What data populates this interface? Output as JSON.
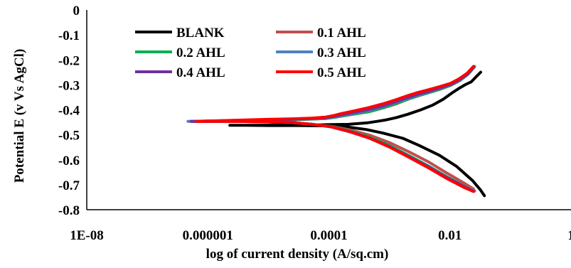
{
  "chart_data": {
    "type": "line",
    "title": "",
    "xlabel": "log of current density (A/sq.cm)",
    "ylabel": "Potential E (v Vs AgCl)",
    "xscale": "log",
    "xlim": [
      1e-08,
      1
    ],
    "ylim": [
      -0.8,
      0
    ],
    "x_tick_labels": [
      "1E-08",
      "0.000001",
      "0.0001",
      "0.01",
      "1"
    ],
    "y_tick_labels": [
      "0",
      "-0.1",
      "-0.2",
      "-0.3",
      "-0.4",
      "-0.5",
      "-0.6",
      "-0.7",
      "-0.8"
    ],
    "grid": false,
    "legend_position": "top-left",
    "series": [
      {
        "name": "BLANK",
        "color": "#000000",
        "x": [
          0.0322,
          0.0275,
          0.0224,
          0.018,
          0.0141,
          0.0107,
          0.0077,
          0.0052,
          0.0033,
          0.002,
          0.0013,
          0.00085,
          0.00063,
          0.00043,
          0.00021,
          0.000105,
          5.25e-05,
          1.27e-05,
          5.93e-06,
          2.31e-06,
          2.31e-06,
          2.31e-06,
          4.31e-06,
          1.01e-05,
          3.11e-05,
          8.8e-05,
          0.00019,
          0.000415,
          0.000782,
          0.00166,
          0.00311,
          0.0067,
          0.0128,
          0.0238,
          0.0322,
          0.0371
        ],
        "y": [
          -0.249,
          -0.266,
          -0.288,
          -0.299,
          -0.314,
          -0.333,
          -0.358,
          -0.381,
          -0.4,
          -0.418,
          -0.431,
          -0.441,
          -0.446,
          -0.452,
          -0.458,
          -0.459,
          -0.461,
          -0.461,
          -0.462,
          -0.462,
          -0.462,
          -0.462,
          -0.462,
          -0.463,
          -0.463,
          -0.464,
          -0.468,
          -0.479,
          -0.493,
          -0.514,
          -0.543,
          -0.582,
          -0.626,
          -0.684,
          -0.722,
          -0.744
        ]
      },
      {
        "name": "0.1 AHL",
        "color": "#C0504D",
        "x": [
          0.0245,
          0.0191,
          0.0141,
          0.0102,
          0.0068,
          0.0045,
          0.003,
          0.002,
          0.0013,
          0.00078,
          0.00046,
          0.00025,
          0.000155,
          0.000125,
          8.81e-05,
          5.25e-05,
          2.54e-05,
          1.05e-05,
          2.5e-06,
          5.3e-07,
          5.3e-07,
          5.3e-07,
          8.7e-07,
          2.5e-06,
          8.9e-06,
          2.46e-05,
          5.25e-05,
          0.00011,
          0.00022,
          0.000467,
          0.00098,
          0.0021,
          0.0044,
          0.0089,
          0.0168,
          0.0245
        ],
        "y": [
          -0.232,
          -0.26,
          -0.284,
          -0.302,
          -0.318,
          -0.331,
          -0.344,
          -0.358,
          -0.376,
          -0.393,
          -0.408,
          -0.418,
          -0.426,
          -0.43,
          -0.435,
          -0.437,
          -0.44,
          -0.441,
          -0.444,
          -0.446,
          -0.446,
          -0.446,
          -0.446,
          -0.446,
          -0.448,
          -0.451,
          -0.458,
          -0.466,
          -0.48,
          -0.501,
          -0.53,
          -0.568,
          -0.608,
          -0.653,
          -0.692,
          -0.717
        ]
      },
      {
        "name": "0.2 AHL",
        "color": "#00B050",
        "x": [
          0.0256,
          0.0199,
          0.0148,
          0.0107,
          0.0071,
          0.0048,
          0.0031,
          0.0021,
          0.0013,
          0.00078,
          0.00046,
          0.00025,
          0.000155,
          0.000125,
          8.81e-05,
          5.25e-05,
          2.54e-05,
          1.05e-05,
          2.5e-06,
          5.3e-07,
          5.3e-07,
          5.3e-07,
          8.7e-07,
          2.5e-06,
          8.9e-06,
          2.46e-05,
          5.25e-05,
          0.00011,
          0.00022,
          0.000467,
          0.00098,
          0.0021,
          0.0044,
          0.0089,
          0.0168,
          0.0256
        ],
        "y": [
          -0.228,
          -0.258,
          -0.282,
          -0.3,
          -0.316,
          -0.329,
          -0.342,
          -0.356,
          -0.374,
          -0.392,
          -0.407,
          -0.417,
          -0.426,
          -0.43,
          -0.435,
          -0.437,
          -0.44,
          -0.441,
          -0.444,
          -0.446,
          -0.446,
          -0.446,
          -0.446,
          -0.446,
          -0.448,
          -0.451,
          -0.458,
          -0.467,
          -0.484,
          -0.509,
          -0.542,
          -0.583,
          -0.625,
          -0.668,
          -0.704,
          -0.725
        ]
      },
      {
        "name": "0.3 AHL",
        "color": "#4F81BD",
        "x": [
          0.0256,
          0.0199,
          0.0148,
          0.0107,
          0.0071,
          0.0048,
          0.0031,
          0.0021,
          0.0013,
          0.00078,
          0.00046,
          0.00025,
          0.000155,
          0.000125,
          8.81e-05,
          5.25e-05,
          2.54e-05,
          1.05e-05,
          2.5e-06,
          4.7e-07,
          4.7e-07,
          4.7e-07,
          8.7e-07,
          2.5e-06,
          8.9e-06,
          2.46e-05,
          5.25e-05,
          0.00011,
          0.00022,
          0.000467,
          0.00098,
          0.0021,
          0.0044,
          0.0089,
          0.0168,
          0.0256
        ],
        "y": [
          -0.226,
          -0.257,
          -0.28,
          -0.298,
          -0.313,
          -0.326,
          -0.339,
          -0.352,
          -0.369,
          -0.387,
          -0.402,
          -0.414,
          -0.423,
          -0.428,
          -0.433,
          -0.436,
          -0.438,
          -0.44,
          -0.443,
          -0.446,
          -0.446,
          -0.446,
          -0.446,
          -0.446,
          -0.448,
          -0.451,
          -0.458,
          -0.469,
          -0.488,
          -0.514,
          -0.547,
          -0.588,
          -0.629,
          -0.671,
          -0.705,
          -0.724
        ]
      },
      {
        "name": "0.4 AHL",
        "color": "#7030A0",
        "x": [
          0.0245,
          0.0191,
          0.0141,
          0.0102,
          0.0068,
          0.0045,
          0.003,
          0.002,
          0.0013,
          0.00078,
          0.00046,
          0.00025,
          0.000155,
          0.000125,
          8.81e-05,
          5.25e-05,
          2.54e-05,
          1.05e-05,
          2.5e-06,
          5.3e-07,
          5.3e-07,
          5.3e-07,
          8.7e-07,
          2.5e-06,
          8.9e-06,
          2.46e-05,
          5.25e-05,
          0.00011,
          0.00022,
          0.000467,
          0.00098,
          0.0021,
          0.0044,
          0.0089,
          0.0168,
          0.0245
        ],
        "y": [
          -0.229,
          -0.259,
          -0.281,
          -0.299,
          -0.313,
          -0.326,
          -0.338,
          -0.351,
          -0.367,
          -0.385,
          -0.399,
          -0.411,
          -0.421,
          -0.426,
          -0.432,
          -0.435,
          -0.438,
          -0.44,
          -0.443,
          -0.446,
          -0.446,
          -0.446,
          -0.446,
          -0.446,
          -0.448,
          -0.451,
          -0.458,
          -0.468,
          -0.486,
          -0.512,
          -0.546,
          -0.587,
          -0.628,
          -0.671,
          -0.706,
          -0.726
        ]
      },
      {
        "name": "0.5 AHL",
        "color": "#FF0000",
        "x": [
          0.0245,
          0.0191,
          0.0141,
          0.0102,
          0.0068,
          0.0045,
          0.003,
          0.002,
          0.0013,
          0.00078,
          0.00046,
          0.00025,
          0.000155,
          0.000125,
          8.81e-05,
          5.25e-05,
          2.54e-05,
          1.05e-05,
          2.5e-06,
          6.4e-07,
          6.4e-07,
          6.4e-07,
          8.7e-07,
          2.5e-06,
          8.9e-06,
          2.46e-05,
          5.25e-05,
          0.00011,
          0.00022,
          0.000467,
          0.00098,
          0.0021,
          0.0044,
          0.0089,
          0.0168,
          0.0245
        ],
        "y": [
          -0.226,
          -0.254,
          -0.276,
          -0.294,
          -0.307,
          -0.319,
          -0.33,
          -0.343,
          -0.359,
          -0.376,
          -0.391,
          -0.405,
          -0.416,
          -0.422,
          -0.429,
          -0.433,
          -0.436,
          -0.438,
          -0.442,
          -0.446,
          -0.446,
          -0.446,
          -0.446,
          -0.446,
          -0.448,
          -0.451,
          -0.458,
          -0.468,
          -0.487,
          -0.513,
          -0.548,
          -0.59,
          -0.632,
          -0.675,
          -0.71,
          -0.727
        ]
      }
    ]
  }
}
